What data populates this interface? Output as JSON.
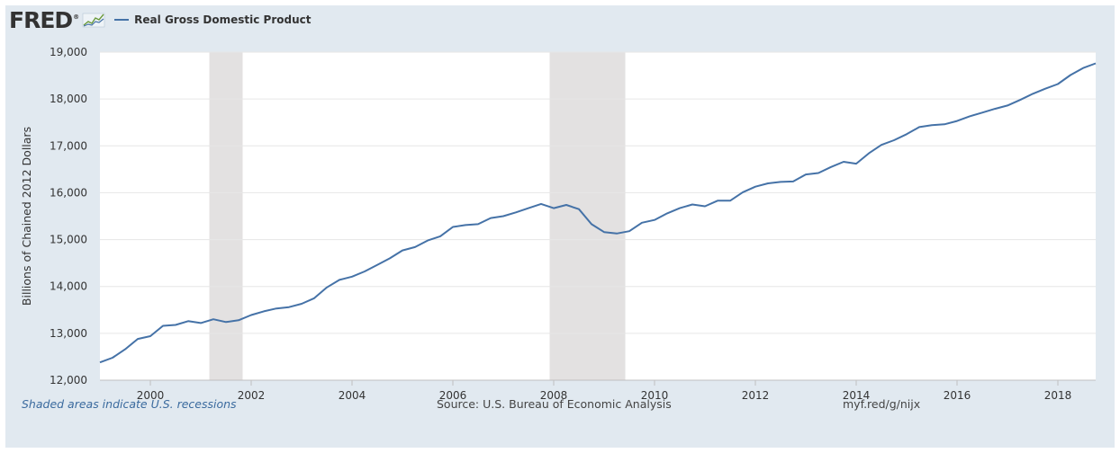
{
  "header": {
    "logo_text": "FRED",
    "logo_mark": "®",
    "legend_label": "Real Gross Domestic Product",
    "series_color": "#4572a7"
  },
  "footer": {
    "note": "Shaded areas indicate U.S. recessions",
    "source": "Source: U.S. Bureau of Economic Analysis",
    "link": "myf.red/g/nijx"
  },
  "chart_data": {
    "type": "line",
    "title": "",
    "ylabel": "Billions of Chained 2012 Dollars",
    "xlabel": "",
    "xlim": [
      1999.0,
      2018.75
    ],
    "ylim": [
      12000,
      19000
    ],
    "x_ticks": [
      2000,
      2002,
      2004,
      2006,
      2008,
      2010,
      2012,
      2014,
      2016,
      2018
    ],
    "y_ticks": [
      12000,
      13000,
      14000,
      15000,
      16000,
      17000,
      18000,
      19000
    ],
    "y_tick_labels": [
      "12,000",
      "13,000",
      "14,000",
      "15,000",
      "16,000",
      "17,000",
      "18,000",
      "19,000"
    ],
    "grid": true,
    "recessions": [
      [
        2001.17,
        2001.83
      ],
      [
        2007.92,
        2009.42
      ]
    ],
    "series": [
      {
        "name": "Real Gross Domestic Product",
        "x": [
          1999.0,
          1999.25,
          1999.5,
          1999.75,
          2000.0,
          2000.25,
          2000.5,
          2000.75,
          2001.0,
          2001.25,
          2001.5,
          2001.75,
          2002.0,
          2002.25,
          2002.5,
          2002.75,
          2003.0,
          2003.25,
          2003.5,
          2003.75,
          2004.0,
          2004.25,
          2004.5,
          2004.75,
          2005.0,
          2005.25,
          2005.5,
          2005.75,
          2006.0,
          2006.25,
          2006.5,
          2006.75,
          2007.0,
          2007.25,
          2007.5,
          2007.75,
          2008.0,
          2008.25,
          2008.5,
          2008.75,
          2009.0,
          2009.25,
          2009.5,
          2009.75,
          2010.0,
          2010.25,
          2010.5,
          2010.75,
          2011.0,
          2011.25,
          2011.5,
          2011.75,
          2012.0,
          2012.25,
          2012.5,
          2012.75,
          2013.0,
          2013.25,
          2013.5,
          2013.75,
          2014.0,
          2014.25,
          2014.5,
          2014.75,
          2015.0,
          2015.25,
          2015.5,
          2015.75,
          2016.0,
          2016.25,
          2016.5,
          2016.75,
          2017.0,
          2017.25,
          2017.5,
          2017.75,
          2018.0,
          2018.25,
          2018.5,
          2018.75
        ],
        "values": [
          12380,
          12480,
          12660,
          12880,
          12940,
          13160,
          13180,
          13260,
          13220,
          13300,
          13240,
          13280,
          13390,
          13470,
          13530,
          13560,
          13630,
          13750,
          13980,
          14140,
          14210,
          14320,
          14460,
          14600,
          14770,
          14840,
          14980,
          15070,
          15270,
          15310,
          15330,
          15460,
          15500,
          15580,
          15670,
          15760,
          15670,
          15740,
          15650,
          15330,
          15160,
          15130,
          15180,
          15360,
          15420,
          15560,
          15670,
          15750,
          15710,
          15830,
          15830,
          16010,
          16130,
          16200,
          16230,
          16240,
          16390,
          16420,
          16550,
          16660,
          16620,
          16840,
          17020,
          17120,
          17250,
          17400,
          17440,
          17460,
          17530,
          17630,
          17710,
          17790,
          17860,
          17980,
          18110,
          18220,
          18320,
          18510,
          18660,
          18760
        ]
      }
    ]
  }
}
